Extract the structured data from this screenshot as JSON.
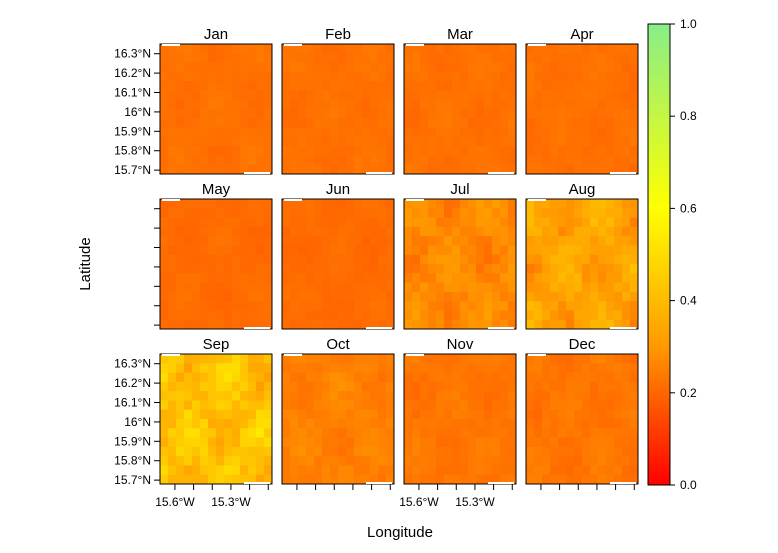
{
  "chart_data": {
    "type": "heatmap",
    "layout": "4 columns x 3 rows small multiples",
    "xlabel": "Longitude",
    "ylabel": "Latitude",
    "x_tick_labels": [
      "15.6°W",
      "15.3°W"
    ],
    "y_tick_labels": [
      "16.3°N",
      "16.2°N",
      "16.1°N",
      "16°N",
      "15.9°N",
      "15.8°N",
      "15.7°N"
    ],
    "x_tick_values": [
      -15.6,
      -15.3
    ],
    "y_tick_values": [
      16.3,
      16.2,
      16.1,
      16.0,
      15.9,
      15.8,
      15.7
    ],
    "panels": [
      {
        "title": "Jan",
        "mean": 0.22,
        "spread": 0.02
      },
      {
        "title": "Feb",
        "mean": 0.22,
        "spread": 0.02
      },
      {
        "title": "Mar",
        "mean": 0.22,
        "spread": 0.02
      },
      {
        "title": "Apr",
        "mean": 0.22,
        "spread": 0.02
      },
      {
        "title": "May",
        "mean": 0.21,
        "spread": 0.02
      },
      {
        "title": "Jun",
        "mean": 0.21,
        "spread": 0.02
      },
      {
        "title": "Jul",
        "mean": 0.27,
        "spread": 0.06
      },
      {
        "title": "Aug",
        "mean": 0.33,
        "spread": 0.09
      },
      {
        "title": "Sep",
        "mean": 0.42,
        "spread": 0.12
      },
      {
        "title": "Oct",
        "mean": 0.25,
        "spread": 0.04
      },
      {
        "title": "Nov",
        "mean": 0.23,
        "spread": 0.03
      },
      {
        "title": "Dec",
        "mean": 0.23,
        "spread": 0.03
      }
    ],
    "colorbar": {
      "range": [
        0.0,
        1.0
      ],
      "ticks": [
        0.0,
        0.2,
        0.4,
        0.6,
        0.8,
        1.0
      ],
      "tick_labels": [
        "0.0",
        "0.2",
        "0.4",
        "0.6",
        "0.8",
        "1.0"
      ],
      "colors": [
        "#ff0000",
        "#ff9900",
        "#ffff00",
        "#88ee88"
      ],
      "position": "right"
    },
    "grid": false
  }
}
